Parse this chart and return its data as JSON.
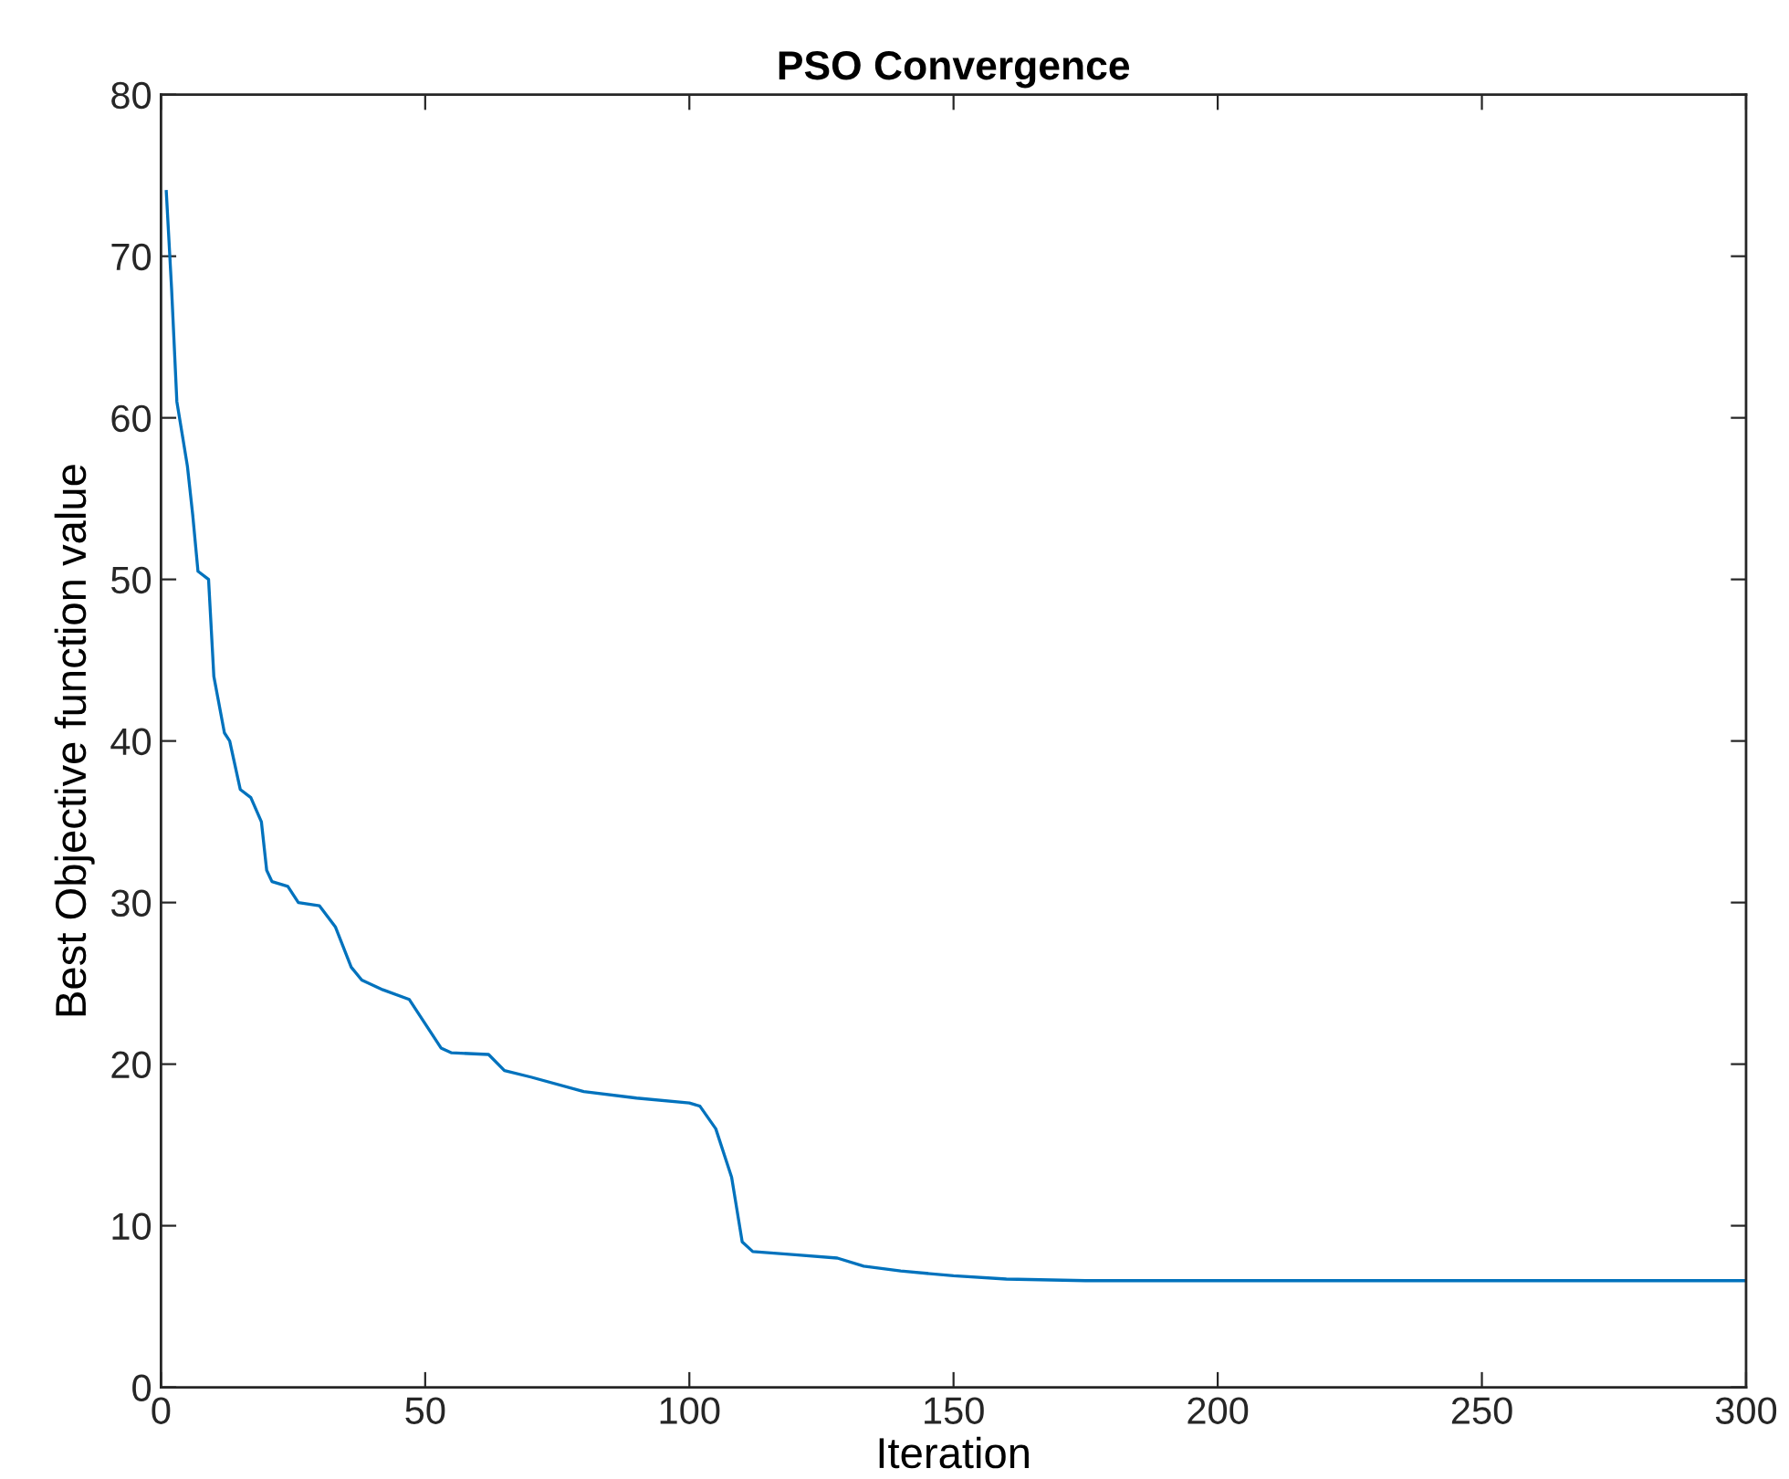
{
  "chart_data": {
    "type": "line",
    "title": "PSO Convergence",
    "xlabel": "Iteration",
    "ylabel": "Best Objective function value",
    "x": [
      1,
      2,
      3,
      4,
      5,
      6,
      7,
      9,
      10,
      12,
      13,
      15,
      17,
      19,
      20,
      21,
      24,
      26,
      30,
      33,
      36,
      38,
      42,
      47,
      50,
      53,
      55,
      62,
      65,
      70,
      80,
      90,
      100,
      102,
      105,
      108,
      110,
      112,
      120,
      128,
      133,
      140,
      150,
      160,
      175,
      200,
      250,
      300
    ],
    "series": [
      {
        "color": "#0072bd",
        "values": [
          74,
          68,
          61,
          59,
          57,
          54,
          50.5,
          50,
          44,
          40.5,
          40,
          37,
          36.5,
          35,
          32,
          31.3,
          31,
          30,
          29.8,
          28.5,
          26,
          25.2,
          24.6,
          24,
          22.5,
          21,
          20.7,
          20.6,
          19.6,
          19.2,
          18.3,
          17.9,
          17.6,
          17.4,
          16,
          13,
          9,
          8.4,
          8.2,
          8,
          7.5,
          7.2,
          6.9,
          6.7,
          6.6,
          6.6,
          6.6,
          6.6
        ]
      }
    ],
    "xlim": [
      0,
      300
    ],
    "xticks": [
      0,
      50,
      100,
      150,
      200,
      250,
      300
    ],
    "ylim": [
      0,
      80
    ],
    "yticks": [
      0,
      10,
      20,
      30,
      40,
      50,
      60,
      70,
      80
    ],
    "grid": false,
    "legend": false,
    "marker": "none",
    "line_style": "solid"
  }
}
